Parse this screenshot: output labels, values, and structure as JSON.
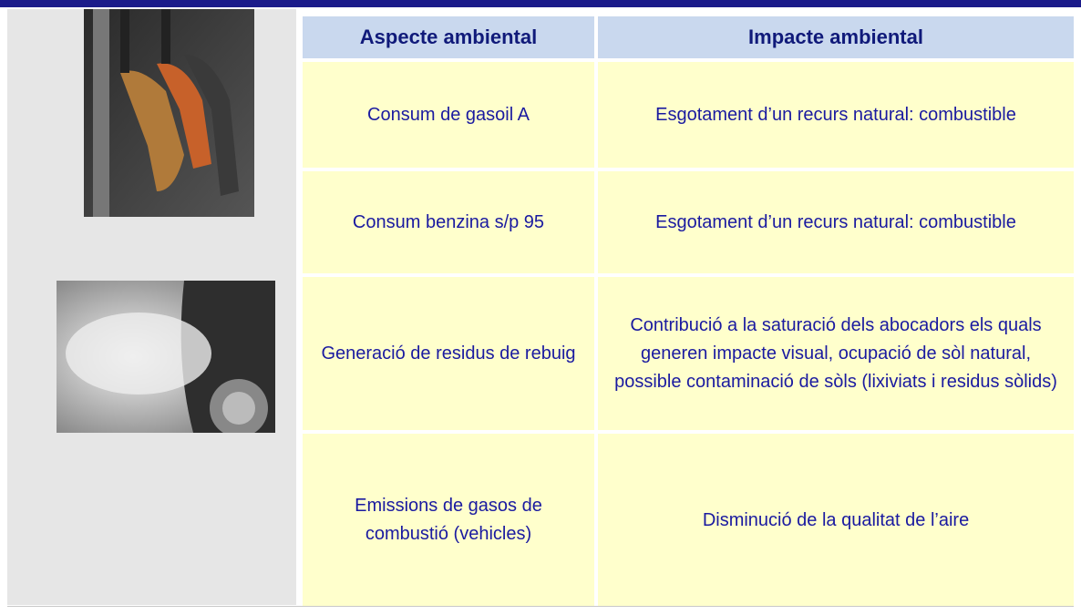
{
  "table": {
    "headers": [
      "Aspecte ambiental",
      "Impacte ambiental"
    ],
    "rows": [
      [
        "Consum de gasoil A",
        "Esgotament d’un recurs natural: combustible"
      ],
      [
        "Consum benzina s/p 95",
        "Esgotament d’un recurs natural: combustible"
      ],
      [
        "Generació de residus de rebuig",
        "Contribució a la saturació dels abocadors els quals generen impacte visual, ocupació de sòl natural, possible contaminació de sòls (lixiviats i residus sòlids)"
      ],
      [
        "Emissions de gasos de combustió (vehicles)",
        "Disminució de la qualitat de l’aire"
      ]
    ]
  }
}
